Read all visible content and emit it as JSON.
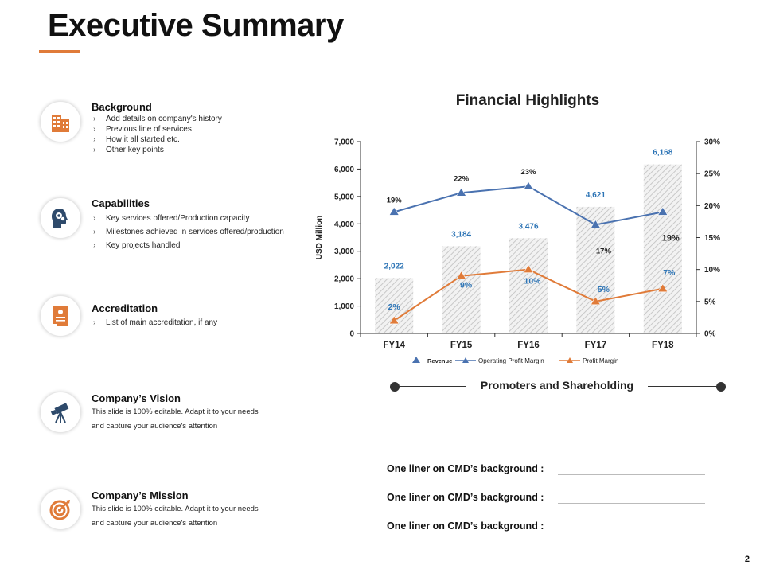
{
  "slide": {
    "title": "Executive Summary",
    "page_number": "2",
    "accent_color": "#e07b39"
  },
  "sections": [
    {
      "title": "Background",
      "icon": "building-icon",
      "bullets": [
        "Add details on company's history",
        "Previous line of services",
        "How it all started etc.",
        "Other key points"
      ]
    },
    {
      "title": "Capabilities",
      "icon": "head-gears-icon",
      "bullets": [
        "Key services offered/Production capacity",
        "Milestones achieved in services offered/production",
        "Key projects handled"
      ]
    },
    {
      "title": "Accreditation",
      "icon": "certificate-icon",
      "bullets": [
        "List of main accreditation, if any"
      ]
    },
    {
      "title": "Company’s Vision",
      "icon": "telescope-icon",
      "desc_lines": [
        "This slide is 100% editable.  Adapt it to your needs",
        "and capture your audience's attention"
      ]
    },
    {
      "title": "Company’s Mission",
      "icon": "target-icon",
      "desc_lines": [
        "This slide is 100% editable.  Adapt it to your needs",
        "and capture your audience's attention"
      ]
    }
  ],
  "chart_data": {
    "type": "bar",
    "title": "Financial Highlights",
    "categories": [
      "FY14",
      "FY15",
      "FY16",
      "FY17",
      "FY18"
    ],
    "ylabel": "USD Million",
    "ylim": [
      0,
      7000
    ],
    "y_ticks": [
      "0",
      "1,000",
      "2,000",
      "3,000",
      "4,000",
      "5,000",
      "6,000",
      "7,000"
    ],
    "y2lim": [
      0,
      30
    ],
    "y2_ticks": [
      "0%",
      "5%",
      "10%",
      "15%",
      "20%",
      "25%",
      "30%"
    ],
    "series": [
      {
        "name": "Revenue",
        "type": "bar",
        "axis": "left",
        "values": [
          2022,
          3184,
          3476,
          4621,
          6168
        ],
        "labels": [
          "2,022",
          "3,184",
          "3,476",
          "4,621",
          "6,168"
        ],
        "color": "#d6d6d6",
        "label_color": "#2e75b6"
      },
      {
        "name": "Operating Profit Margin",
        "type": "line",
        "axis": "right",
        "values": [
          19,
          22,
          23,
          17,
          19
        ],
        "labels": [
          "19%",
          "22%",
          "23%",
          "17%",
          "19%"
        ],
        "color": "#4a72b0"
      },
      {
        "name": "Profit Margin",
        "type": "line",
        "axis": "right",
        "values": [
          2,
          9,
          10,
          5,
          7
        ],
        "labels": [
          "2%",
          "9%",
          "10%",
          "5%",
          "7%"
        ],
        "color": "#e07b39",
        "label_color": "#2e75b6"
      }
    ],
    "legend": "bottom",
    "grid": false
  },
  "promoters": {
    "title": "Promoters and Shareholding"
  },
  "liners": [
    "One liner on CMD’s background :",
    "One liner on CMD’s background :",
    "One liner on CMD’s background :"
  ]
}
